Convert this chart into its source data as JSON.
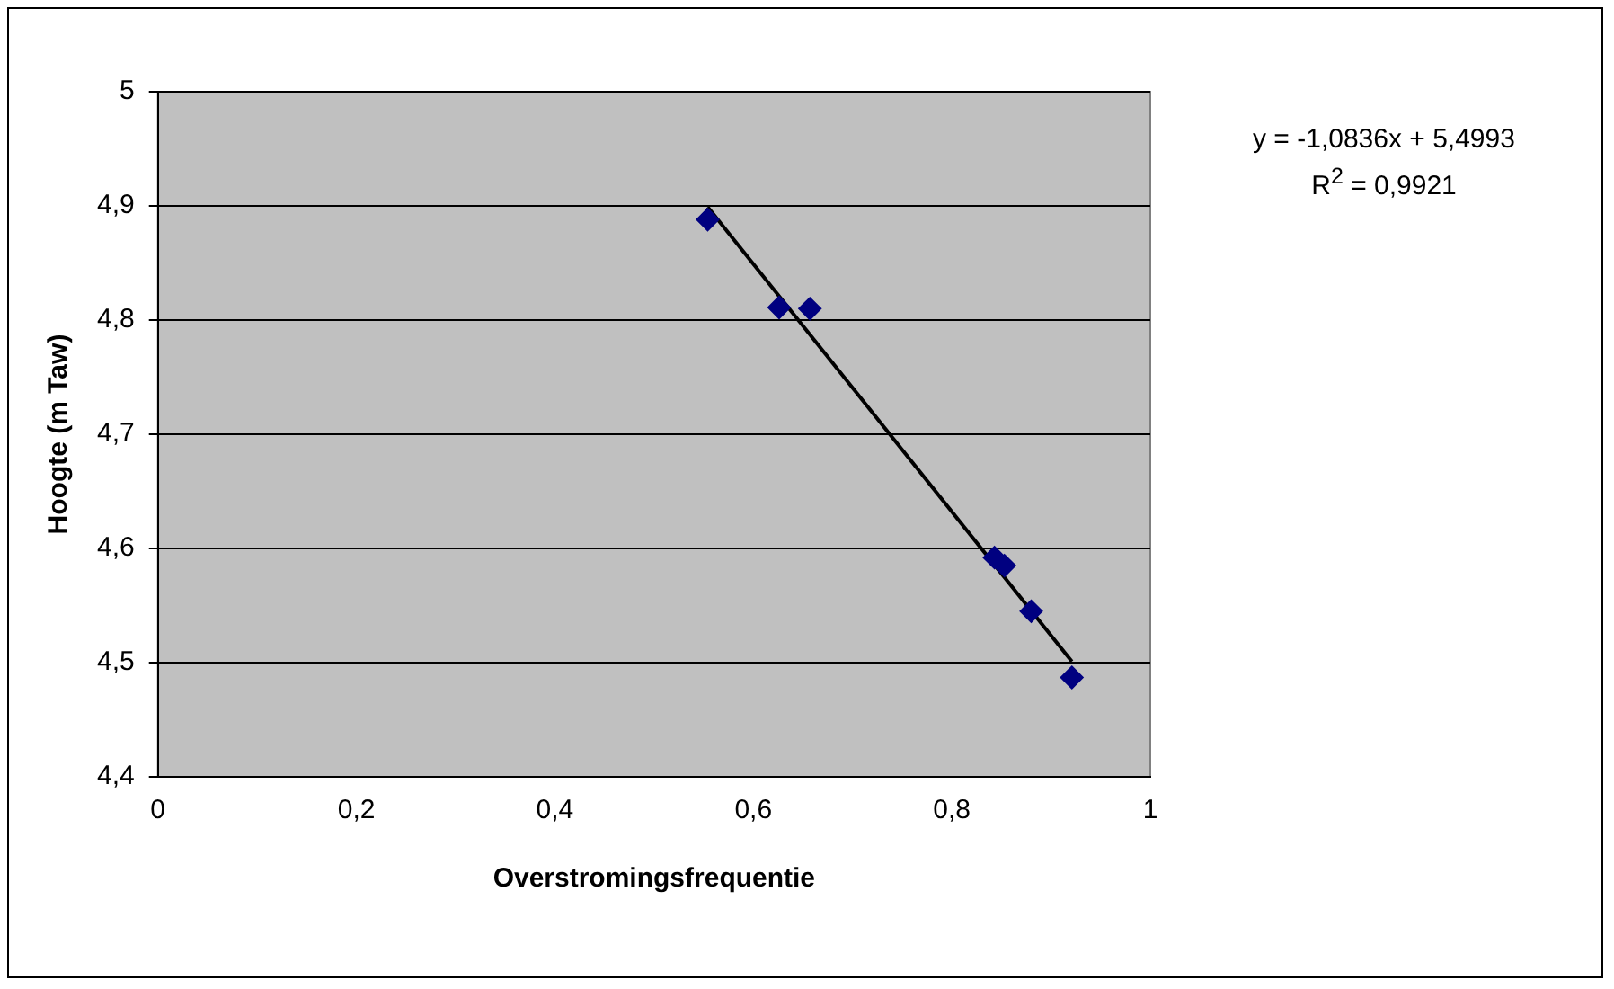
{
  "chart_data": {
    "type": "scatter",
    "xlabel": "Overstromingsfrequentie",
    "ylabel": "Hoogte (m Taw)",
    "series": [
      {
        "color": "#000080",
        "marker": "diamond",
        "x": [
          0.554,
          0.626,
          0.657,
          0.843,
          0.853,
          0.88,
          0.921
        ],
        "values": [
          4.888,
          4.811,
          4.81,
          4.592,
          4.585,
          4.545,
          4.487
        ]
      },
      {
        "type": "line",
        "color": "#000000",
        "marker": "none",
        "line_style": "solid",
        "x": [
          0.554,
          0.921
        ],
        "values": [
          4.899,
          4.501
        ]
      }
    ],
    "xlim": [
      0,
      1
    ],
    "xticks": [
      0,
      {
        "value": 0.2,
        "label": "0,2"
      },
      {
        "value": 0.4,
        "label": "0,4"
      },
      {
        "value": 0.6,
        "label": "0,6"
      },
      {
        "value": 0.8,
        "label": "0,8"
      },
      1
    ],
    "ylim": [
      4.4,
      5
    ],
    "yticks": [
      {
        "value": 4.4,
        "label": "4,4"
      },
      {
        "value": 4.5,
        "label": "4,5"
      },
      {
        "value": 4.6,
        "label": "4,6"
      },
      {
        "value": 4.7,
        "label": "4,7"
      },
      {
        "value": 4.8,
        "label": "4,8"
      },
      {
        "value": 4.9,
        "label": "4,9"
      },
      5
    ],
    "grid": "y",
    "legend": false,
    "annotations": [
      "y = -1,0836x + 5,4993",
      "R$^{2}$ = 0,9921"
    ]
  }
}
